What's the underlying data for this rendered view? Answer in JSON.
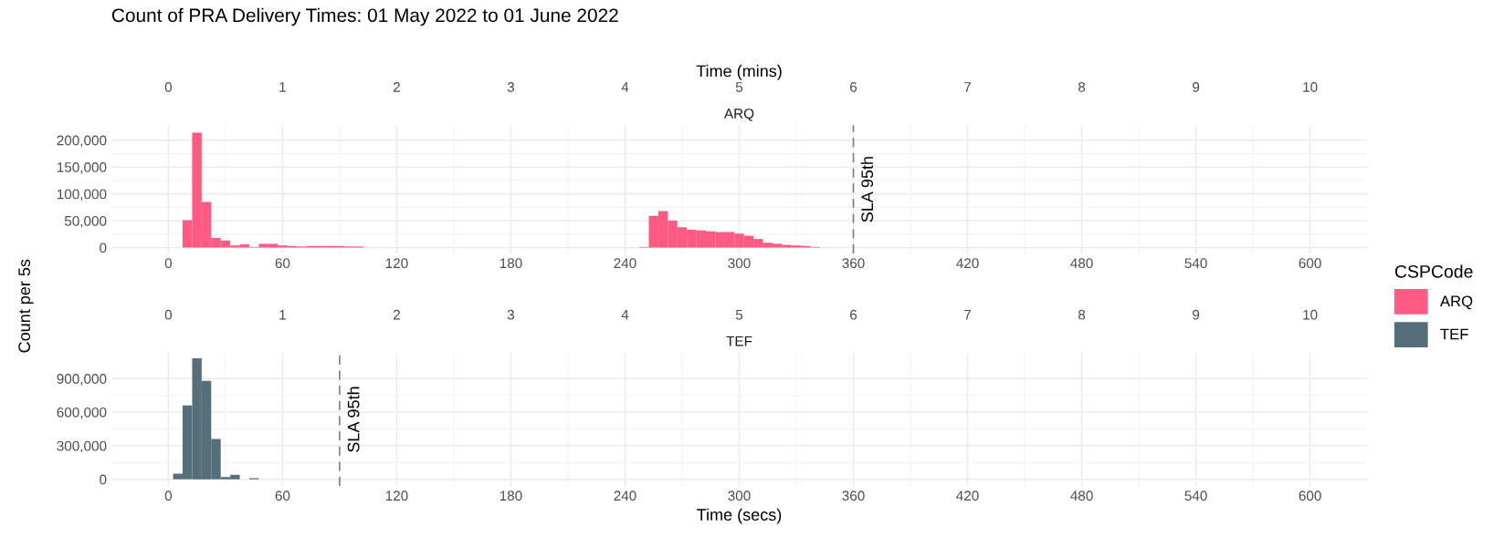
{
  "chart_data": [
    {
      "type": "histogram",
      "title": "Count of PRA Delivery Times: 01 May 2022 to 01 June 2022",
      "subtitle": "ARQ",
      "x2label": "Time (mins)",
      "ylabel": "Count per 5s",
      "legend_title": "CSPCode",
      "legend": "right",
      "grid": true,
      "bins": [
        7.5,
        12.5,
        17.5,
        22.5,
        27.5,
        32.5,
        37.5,
        42.5,
        47.5,
        52.5,
        57.5,
        62.5,
        67.5,
        72.5,
        77.5,
        82.5,
        87.5,
        92.5,
        97.5,
        102.5,
        107.5,
        112.5,
        117.5,
        122.5,
        127.5,
        132.5,
        137.5,
        142.5,
        147.5,
        152.5,
        157.5,
        162.5,
        167.5,
        172.5,
        177.5,
        182.5,
        187.5,
        192.5,
        197.5,
        202.5,
        207.5,
        212.5,
        217.5,
        222.5,
        227.5,
        232.5,
        237.5,
        242.5,
        247.5,
        252.5,
        257.5,
        262.5,
        267.5,
        272.5,
        277.5,
        282.5,
        287.5,
        292.5,
        297.5,
        302.5,
        307.5,
        312.5,
        317.5,
        322.5,
        327.5,
        332.5,
        337.5,
        342.5,
        347.5
      ],
      "series": [
        {
          "name": "ARQ",
          "color": "#ff5a82",
          "values": [
            51000,
            214000,
            85000,
            18000,
            13000,
            4000,
            6000,
            1000,
            7000,
            7000,
            4000,
            3000,
            2000,
            3000,
            3000,
            3000,
            3000,
            2000,
            2000,
            0,
            0,
            0,
            0,
            0,
            0,
            0,
            0,
            0,
            0,
            0,
            0,
            0,
            0,
            0,
            0,
            0,
            0,
            0,
            0,
            0,
            0,
            0,
            0,
            0,
            0,
            0,
            0,
            0,
            1000,
            59000,
            68000,
            50000,
            38000,
            33000,
            32000,
            30000,
            29000,
            29000,
            26000,
            22000,
            16000,
            9000,
            7000,
            5000,
            4000,
            3000,
            1000,
            0
          ]
        }
      ],
      "xlim": [
        -30,
        630
      ],
      "xticks": [
        0,
        60,
        120,
        180,
        240,
        300,
        360,
        420,
        480,
        540,
        600
      ],
      "x2lim": [
        -0.5,
        10.5
      ],
      "x2ticks": [
        0,
        1,
        2,
        3,
        4,
        5,
        6,
        7,
        8,
        9,
        10
      ],
      "ylim": [
        -11000,
        228000
      ],
      "yticks": [
        0,
        {
          "value": 50000,
          "label": "50,000"
        },
        {
          "value": 100000,
          "label": "100,000"
        },
        {
          "value": 150000,
          "label": "150,000"
        },
        {
          "value": 200000,
          "label": "200,000"
        }
      ],
      "ref_lines": [
        {
          "axis": "x",
          "value": 360,
          "label": "SLA 95th",
          "color": "#808080",
          "line_style": "dashed"
        }
      ]
    },
    {
      "type": "histogram",
      "subtitle": "TEF",
      "xlabel": "Time (secs)",
      "grid": true,
      "bins": [
        2.5,
        7.5,
        12.5,
        17.5,
        22.5,
        27.5,
        32.5,
        37.5,
        42.5,
        47.5
      ],
      "series": [
        {
          "name": "TEF",
          "color": "#546e7a",
          "values": [
            50000,
            660000,
            1080000,
            880000,
            360000,
            20000,
            40000,
            0,
            10000
          ]
        }
      ],
      "xlim": [
        -30,
        630
      ],
      "xticks": [
        0,
        60,
        120,
        180,
        240,
        300,
        360,
        420,
        480,
        540,
        600
      ],
      "x2lim": [
        -0.5,
        10.5
      ],
      "x2ticks": [
        0,
        1,
        2,
        3,
        4,
        5,
        6,
        7,
        8,
        9,
        10
      ],
      "ylim": [
        -60000,
        1130000
      ],
      "yticks": [
        0,
        {
          "value": 300000,
          "label": "300,000"
        },
        {
          "value": 600000,
          "label": "600,000"
        },
        {
          "value": 900000,
          "label": "900,000"
        }
      ],
      "ref_lines": [
        {
          "axis": "x",
          "value": 90,
          "label": "SLA 95th",
          "color": "#808080",
          "line_style": "dashed"
        }
      ]
    }
  ]
}
